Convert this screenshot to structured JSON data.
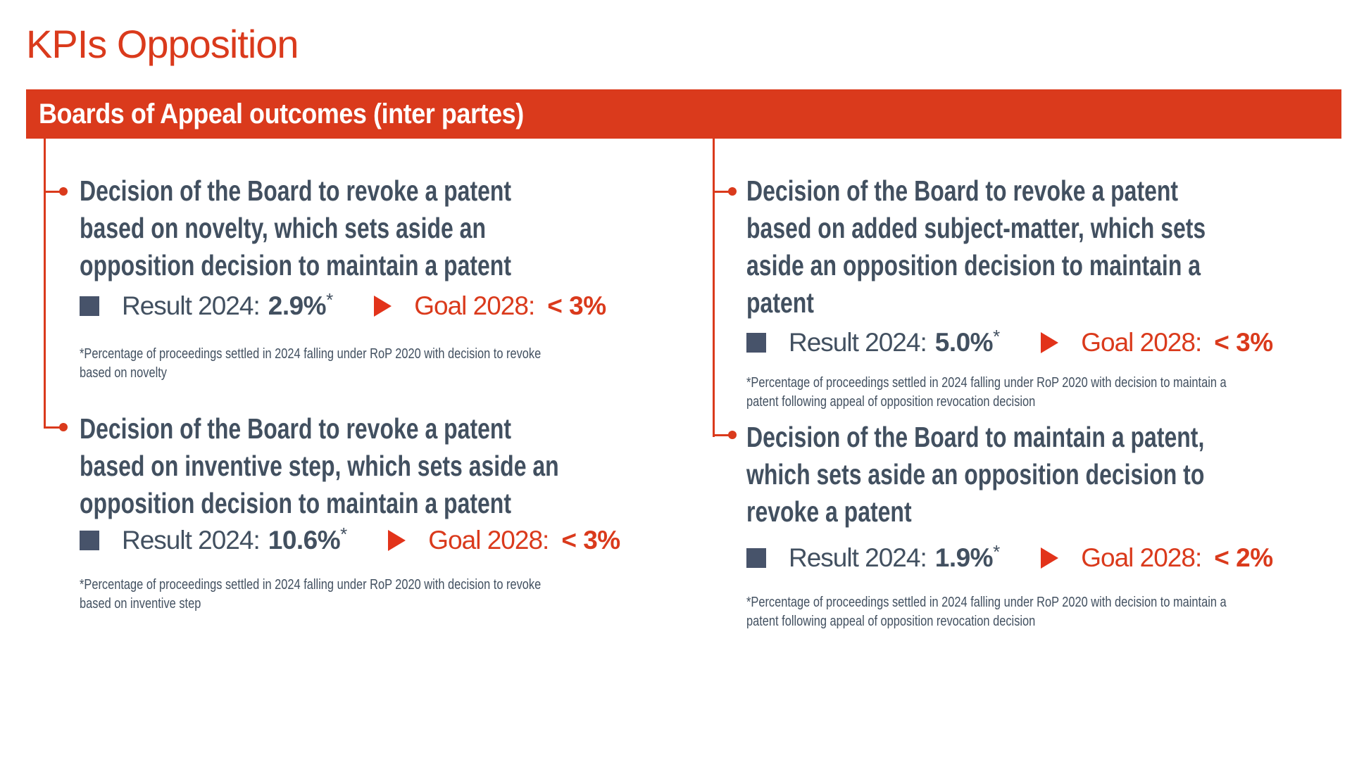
{
  "page": {
    "title": "KPIs Opposition"
  },
  "banner": {
    "title": "Boards of Appeal outcomes (inter partes)"
  },
  "labels": {
    "result": "Result 2024:",
    "goal": "Goal 2028:",
    "footnote_marker": "*"
  },
  "colors": {
    "accent_red": "#DA3A1C",
    "text_navy": "#425060",
    "banner_text": "#FFFFFF"
  },
  "icons": {
    "result_bullet": "square-icon",
    "goal_marker": "triangle-right-icon",
    "connector": "dot-icon"
  },
  "kpis": [
    {
      "heading_lines": [
        "Decision of the Board to revoke a patent",
        "based on novelty, which sets aside an",
        "opposition decision to maintain a patent"
      ],
      "result_value": "2.9%",
      "goal_value": "< 3%",
      "footnote_lines": [
        "*Percentage of proceedings settled in 2024 falling under RoP 2020 with decision to revoke",
        "based on novelty"
      ]
    },
    {
      "heading_lines": [
        "Decision of the Board to revoke a patent",
        "based on inventive step, which sets aside an",
        "opposition decision to maintain a patent"
      ],
      "result_value": "10.6%",
      "goal_value": "< 3%",
      "footnote_lines": [
        "*Percentage of proceedings settled in 2024 falling under RoP 2020 with decision to revoke",
        "based on inventive step"
      ]
    },
    {
      "heading_lines": [
        "Decision of the Board to revoke a patent",
        "based on added subject-matter, which sets",
        "aside an opposition decision to maintain a",
        "patent"
      ],
      "result_value": "5.0%",
      "goal_value": "< 3%",
      "footnote_lines": [
        "*Percentage of proceedings settled in 2024 falling under RoP 2020 with decision to maintain a",
        "patent following appeal of opposition revocation decision"
      ]
    },
    {
      "heading_lines": [
        "Decision of the Board to maintain a patent,",
        "which sets aside an opposition decision to",
        "revoke a patent"
      ],
      "result_value": "1.9%",
      "goal_value": "< 2%",
      "footnote_lines": [
        "*Percentage of proceedings settled in 2024 falling under RoP 2020 with decision to maintain a",
        "patent following appeal of opposition revocation decision"
      ]
    }
  ]
}
